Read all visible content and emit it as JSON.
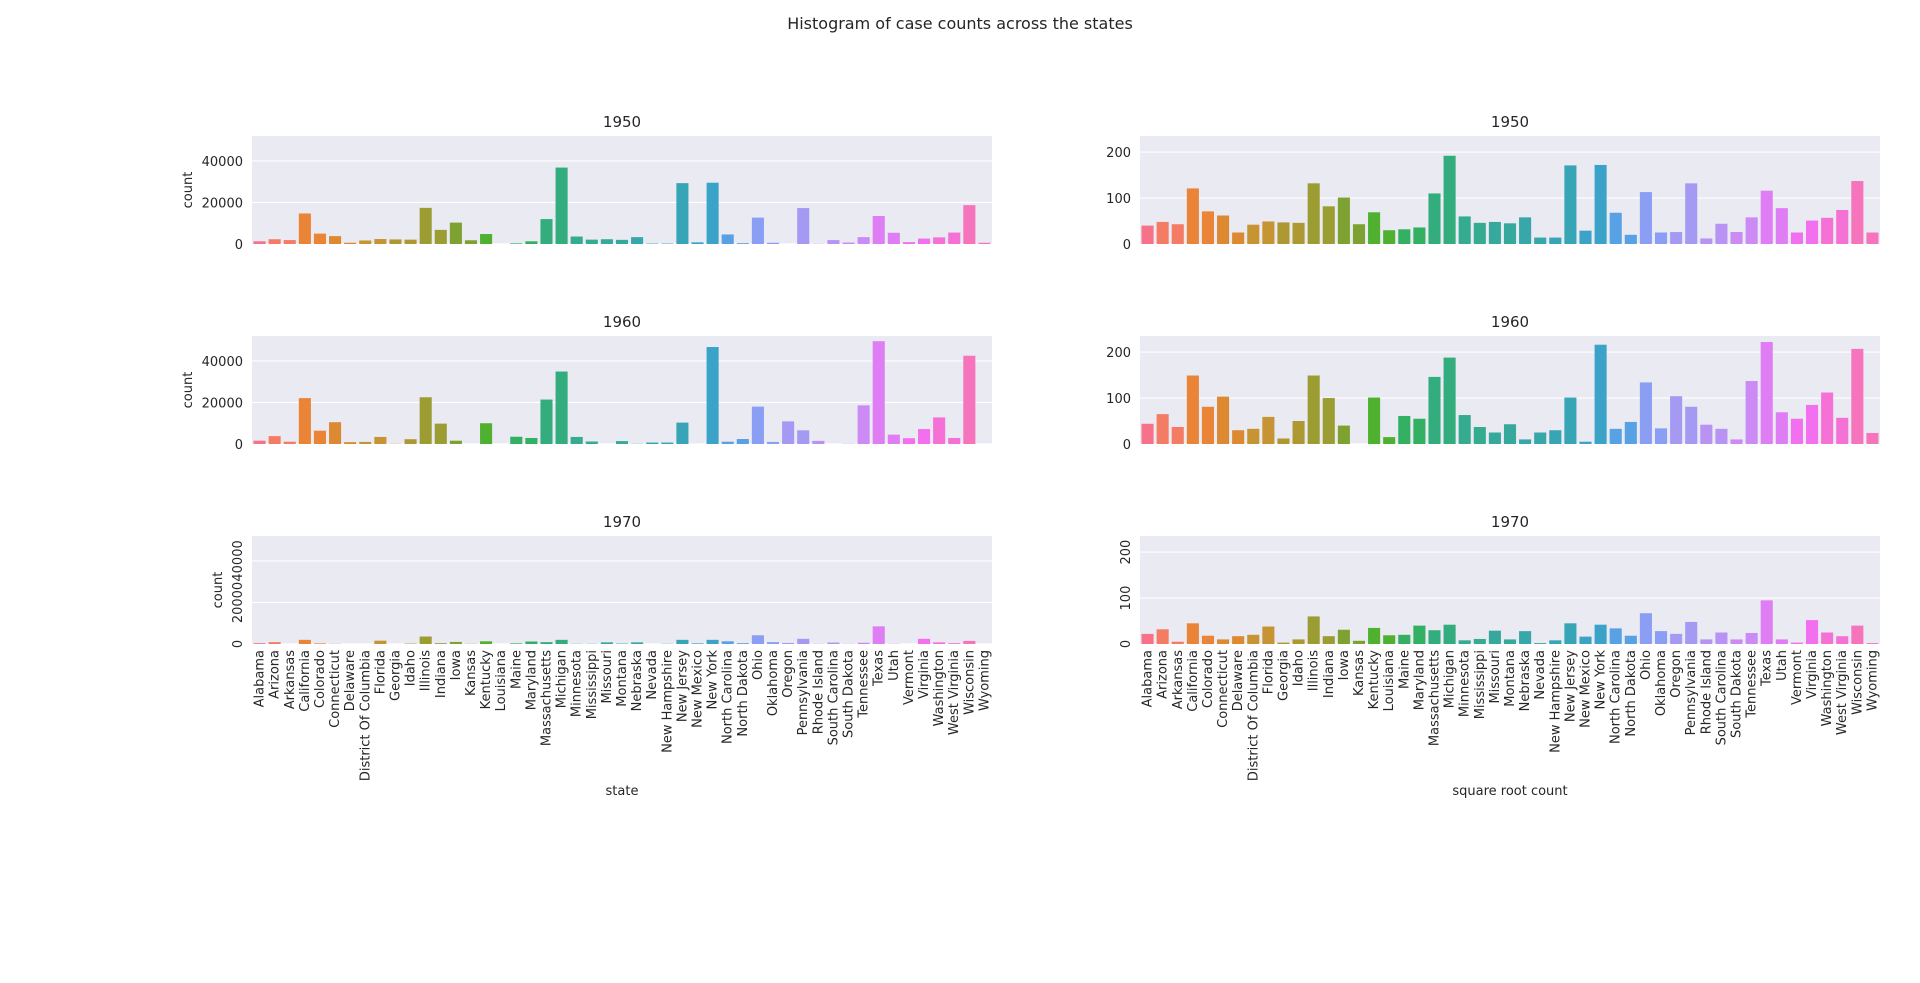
{
  "title": "Histogram of case counts across the states",
  "chart_data": [
    {
      "type": "bar",
      "title": "1950",
      "ylabel": "count",
      "xlabel": "",
      "ylim": [
        0,
        52000
      ],
      "yticks": [
        "0",
        "20000",
        "40000"
      ],
      "show_xticks": false,
      "grid": true,
      "column": "left",
      "row": 0,
      "categories": [
        "Alabama",
        "Arizona",
        "Arkansas",
        "California",
        "Colorado",
        "Connecticut",
        "Delaware",
        "District Of Columbia",
        "Florida",
        "Georgia",
        "Idaho",
        "Illinois",
        "Indiana",
        "Iowa",
        "Kansas",
        "Kentucky",
        "Louisiana",
        "Maine",
        "Maryland",
        "Massachusetts",
        "Michigan",
        "Minnesota",
        "Mississippi",
        "Missouri",
        "Montana",
        "Nebraska",
        "Nevada",
        "New Hampshire",
        "New Jersey",
        "New Mexico",
        "New York",
        "North Carolina",
        "North Dakota",
        "Ohio",
        "Oklahoma",
        "Oregon",
        "Pennsylvania",
        "Rhode Island",
        "South Carolina",
        "South Dakota",
        "Tennessee",
        "Texas",
        "Utah",
        "Vermont",
        "Virginia",
        "Washington",
        "West Virginia",
        "Wisconsin",
        "Wyoming"
      ],
      "values": [
        1300,
        2300,
        1900,
        14700,
        5000,
        3800,
        600,
        1700,
        2400,
        2200,
        2100,
        17400,
        6800,
        10300,
        1800,
        4800,
        0,
        300,
        1300,
        12000,
        36800,
        3600,
        2100,
        2300,
        2000,
        3300,
        200,
        200,
        29300,
        800,
        29500,
        4600,
        400,
        12700,
        600,
        0,
        17300,
        100,
        1900,
        700,
        3300,
        13500,
        5400,
        900,
        2600,
        3200,
        5500,
        18700,
        600
      ]
    },
    {
      "type": "bar",
      "title": "1960",
      "ylabel": "count",
      "xlabel": "",
      "ylim": [
        0,
        52000
      ],
      "yticks": [
        "0",
        "20000",
        "40000"
      ],
      "show_xticks": false,
      "grid": true,
      "column": "left",
      "row": 1,
      "categories": [
        "Alabama",
        "Arizona",
        "Arkansas",
        "California",
        "Colorado",
        "Connecticut",
        "Delaware",
        "District Of Columbia",
        "Florida",
        "Georgia",
        "Idaho",
        "Illinois",
        "Indiana",
        "Iowa",
        "Kansas",
        "Kentucky",
        "Louisiana",
        "Maine",
        "Maryland",
        "Massachusetts",
        "Michigan",
        "Minnesota",
        "Mississippi",
        "Missouri",
        "Montana",
        "Nebraska",
        "Nevada",
        "New Hampshire",
        "New Jersey",
        "New Mexico",
        "New York",
        "North Carolina",
        "North Dakota",
        "Ohio",
        "Oklahoma",
        "Oregon",
        "Pennsylvania",
        "Rhode Island",
        "South Carolina",
        "South Dakota",
        "Tennessee",
        "Texas",
        "Utah",
        "Vermont",
        "Virginia",
        "Washington",
        "West Virginia",
        "Wisconsin",
        "Wyoming"
      ],
      "values": [
        1600,
        3800,
        1100,
        22100,
        6400,
        10500,
        900,
        1000,
        3400,
        100,
        2300,
        22500,
        9800,
        1600,
        0,
        10000,
        0,
        3500,
        2900,
        21400,
        34900,
        3400,
        1200,
        0,
        1400,
        100,
        700,
        700,
        10300,
        0,
        46700,
        1100,
        2400,
        18000,
        1000,
        10900,
        6600,
        1500,
        0,
        100,
        18600,
        49500,
        4500,
        2800,
        7200,
        12800,
        2900,
        42500,
        0
      ]
    },
    {
      "type": "bar",
      "title": "1970",
      "ylabel": "count",
      "xlabel": "state",
      "ylim": [
        0,
        52000
      ],
      "yticks": [
        "0",
        "20000",
        "40000"
      ],
      "show_xticks": true,
      "grid": true,
      "column": "left",
      "row": 2,
      "categories": [
        "Alabama",
        "Arizona",
        "Arkansas",
        "California",
        "Colorado",
        "Connecticut",
        "Delaware",
        "District Of Columbia",
        "Florida",
        "Georgia",
        "Idaho",
        "Illinois",
        "Indiana",
        "Iowa",
        "Kansas",
        "Kentucky",
        "Louisiana",
        "Maine",
        "Maryland",
        "Massachusetts",
        "Michigan",
        "Minnesota",
        "Mississippi",
        "Missouri",
        "Montana",
        "Nebraska",
        "Nevada",
        "New Hampshire",
        "New Jersey",
        "New Mexico",
        "New York",
        "North Carolina",
        "North Dakota",
        "Ohio",
        "Oklahoma",
        "Oregon",
        "Pennsylvania",
        "Rhode Island",
        "South Carolina",
        "South Dakota",
        "Tennessee",
        "Texas",
        "Utah",
        "Vermont",
        "Virginia",
        "Washington",
        "West Virginia",
        "Wisconsin",
        "Wyoming"
      ],
      "values": [
        400,
        900,
        0,
        2000,
        300,
        100,
        0,
        0,
        1600,
        0,
        200,
        3600,
        400,
        1000,
        100,
        1300,
        0,
        300,
        1200,
        900,
        2000,
        100,
        100,
        800,
        200,
        800,
        0,
        100,
        2000,
        300,
        2000,
        1300,
        400,
        4200,
        900,
        500,
        2500,
        100,
        700,
        100,
        600,
        8500,
        100,
        0,
        2500,
        800,
        400,
        1500,
        0
      ]
    },
    {
      "type": "bar",
      "title": "1950",
      "ylabel": "",
      "xlabel": "",
      "ylim": [
        0,
        235
      ],
      "yticks": [
        "0",
        "100",
        "200"
      ],
      "show_xticks": false,
      "grid": true,
      "column": "right",
      "row": 0,
      "categories": [
        "Alabama",
        "Arizona",
        "Arkansas",
        "California",
        "Colorado",
        "Connecticut",
        "Delaware",
        "District Of Columbia",
        "Florida",
        "Georgia",
        "Idaho",
        "Illinois",
        "Indiana",
        "Iowa",
        "Kansas",
        "Kentucky",
        "Louisiana",
        "Maine",
        "Maryland",
        "Massachusetts",
        "Michigan",
        "Minnesota",
        "Mississippi",
        "Missouri",
        "Montana",
        "Nebraska",
        "Nevada",
        "New Hampshire",
        "New Jersey",
        "New Mexico",
        "New York",
        "North Carolina",
        "North Dakota",
        "Ohio",
        "Oklahoma",
        "Oregon",
        "Pennsylvania",
        "Rhode Island",
        "South Carolina",
        "South Dakota",
        "Tennessee",
        "Texas",
        "Utah",
        "Vermont",
        "Virginia",
        "Washington",
        "West Virginia",
        "Wisconsin",
        "Wyoming"
      ],
      "values": [
        40,
        48,
        43,
        121,
        71,
        62,
        25,
        42,
        49,
        47,
        46,
        132,
        82,
        101,
        43,
        69,
        30,
        32,
        36,
        110,
        192,
        60,
        46,
        48,
        45,
        58,
        14,
        14,
        171,
        29,
        172,
        68,
        20,
        113,
        25,
        26,
        132,
        12,
        44,
        26,
        58,
        116,
        78,
        25,
        51,
        57,
        74,
        137,
        25
      ]
    },
    {
      "type": "bar",
      "title": "1960",
      "ylabel": "",
      "xlabel": "",
      "ylim": [
        0,
        235
      ],
      "yticks": [
        "0",
        "100",
        "200"
      ],
      "show_xticks": false,
      "grid": true,
      "column": "right",
      "row": 1,
      "categories": [
        "Alabama",
        "Arizona",
        "Arkansas",
        "California",
        "Colorado",
        "Connecticut",
        "Delaware",
        "District Of Columbia",
        "Florida",
        "Georgia",
        "Idaho",
        "Illinois",
        "Indiana",
        "Iowa",
        "Kansas",
        "Kentucky",
        "Louisiana",
        "Maine",
        "Maryland",
        "Massachusetts",
        "Michigan",
        "Minnesota",
        "Mississippi",
        "Missouri",
        "Montana",
        "Nebraska",
        "Nevada",
        "New Hampshire",
        "New Jersey",
        "New Mexico",
        "New York",
        "North Carolina",
        "North Dakota",
        "Ohio",
        "Oklahoma",
        "Oregon",
        "Pennsylvania",
        "Rhode Island",
        "South Carolina",
        "South Dakota",
        "Tennessee",
        "Texas",
        "Utah",
        "Vermont",
        "Virginia",
        "Washington",
        "West Virginia",
        "Wisconsin",
        "Wyoming"
      ],
      "values": [
        44,
        65,
        37,
        149,
        81,
        103,
        30,
        33,
        59,
        12,
        50,
        149,
        100,
        40,
        0,
        101,
        15,
        61,
        55,
        146,
        188,
        63,
        37,
        25,
        43,
        10,
        25,
        30,
        101,
        5,
        216,
        33,
        48,
        134,
        34,
        104,
        81,
        42,
        33,
        10,
        137,
        222,
        69,
        55,
        85,
        112,
        57,
        207,
        24
      ]
    },
    {
      "type": "bar",
      "title": "1970",
      "ylabel": "",
      "xlabel": "square root count",
      "ylim": [
        0,
        235
      ],
      "yticks": [
        "0",
        "100",
        "200"
      ],
      "show_xticks": true,
      "grid": true,
      "column": "right",
      "row": 2,
      "categories": [
        "Alabama",
        "Arizona",
        "Arkansas",
        "California",
        "Colorado",
        "Connecticut",
        "Delaware",
        "District Of Columbia",
        "Florida",
        "Georgia",
        "Idaho",
        "Illinois",
        "Indiana",
        "Iowa",
        "Kansas",
        "Kentucky",
        "Louisiana",
        "Maine",
        "Maryland",
        "Massachusetts",
        "Michigan",
        "Minnesota",
        "Mississippi",
        "Missouri",
        "Montana",
        "Nebraska",
        "Nevada",
        "New Hampshire",
        "New Jersey",
        "New Mexico",
        "New York",
        "North Carolina",
        "North Dakota",
        "Ohio",
        "Oklahoma",
        "Oregon",
        "Pennsylvania",
        "Rhode Island",
        "South Carolina",
        "South Dakota",
        "Tennessee",
        "Texas",
        "Utah",
        "Vermont",
        "Virginia",
        "Washington",
        "West Virginia",
        "Wisconsin",
        "Wyoming"
      ],
      "values": [
        22,
        32,
        5,
        45,
        18,
        10,
        17,
        20,
        38,
        3,
        10,
        60,
        17,
        31,
        7,
        35,
        19,
        20,
        40,
        30,
        42,
        8,
        11,
        29,
        10,
        28,
        2,
        8,
        45,
        16,
        42,
        34,
        18,
        67,
        28,
        22,
        48,
        10,
        25,
        10,
        24,
        95,
        10,
        3,
        52,
        25,
        17,
        40,
        2
      ]
    }
  ]
}
